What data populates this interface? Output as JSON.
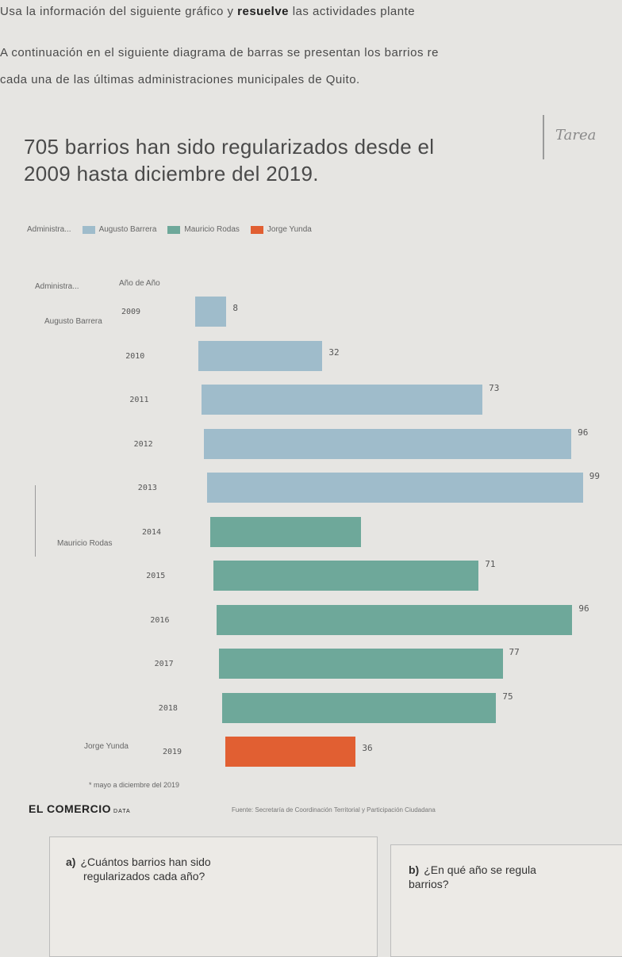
{
  "header": {
    "line1_a": "Usa la información del siguiente gráfico y ",
    "line1_b": "resuelve",
    "line1_c": " las actividades plante",
    "line2": "A continuación en el siguiente diagrama de barras se presentan los barrios re",
    "line3": "cada una de las últimas administraciones municipales de Quito."
  },
  "handwritten_note": "Tarea",
  "chart_data": {
    "type": "bar",
    "orientation": "horizontal",
    "title": "705 barrios han sido regularizados desde el 2009 hasta diciembre del 2019.",
    "legend_title": "Administra...",
    "legend": [
      {
        "name": "Augusto Barrera",
        "color": "#9fbccb"
      },
      {
        "name": "Mauricio Rodas",
        "color": "#6ea89a"
      },
      {
        "name": "Jorge Yunda",
        "color": "#e15f32"
      }
    ],
    "column_headers": [
      "Administra...",
      "Año de Año"
    ],
    "categories": [
      "2009",
      "2010",
      "2011",
      "2012",
      "2013",
      "2014",
      "2015",
      "2016",
      "2017",
      "2018",
      "2019"
    ],
    "value_labels": [
      "8",
      "32",
      "73",
      "96",
      "99",
      "",
      "71",
      "96",
      "77",
      "75",
      "36"
    ],
    "values": [
      8,
      32,
      73,
      96,
      99,
      40,
      71,
      96,
      77,
      75,
      36
    ],
    "groups": [
      {
        "name": "Augusto Barrera",
        "color": "#9fbccb",
        "years": [
          "2009",
          "2010",
          "2011",
          "2012",
          "2013"
        ]
      },
      {
        "name": "Mauricio Rodas",
        "color": "#6ea89a",
        "years": [
          "2014",
          "2015",
          "2016",
          "2017",
          "2018"
        ]
      },
      {
        "name": "Jorge Yunda",
        "color": "#e15f32",
        "years": [
          "2019"
        ]
      }
    ],
    "footnote": "* mayo a diciembre del 2019",
    "grid": false,
    "legend_position": "top"
  },
  "footer": {
    "brand": "EL COMERCIO",
    "brand_sub": "DATA",
    "source": "Fuente: Secretaría de Coordinación Territorial y Participación Ciudadana"
  },
  "questions": [
    {
      "letter": "a)",
      "text_l1": "¿Cuántos barrios han sido",
      "text_l2": "regularizados cada año?"
    },
    {
      "letter": "b)",
      "text_l1": "¿En qué año se regula",
      "text_l2": "barrios?"
    }
  ]
}
